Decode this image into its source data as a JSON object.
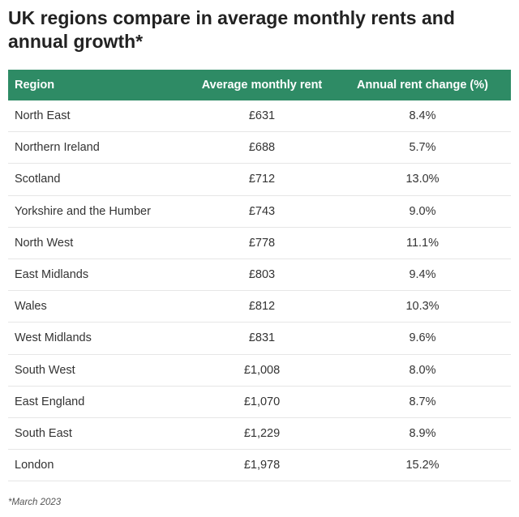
{
  "chart_data": {
    "type": "table",
    "title": "UK regions compare in average monthly rents and annual growth*",
    "columns": [
      "Region",
      "Average monthly rent",
      "Annual rent change (%)"
    ],
    "rows": [
      [
        "North East",
        "£631",
        "8.4%"
      ],
      [
        "Northern Ireland",
        "£688",
        "5.7%"
      ],
      [
        "Scotland",
        "£712",
        "13.0%"
      ],
      [
        "Yorkshire and the Humber",
        "£743",
        "9.0%"
      ],
      [
        "North West",
        "£778",
        "11.1%"
      ],
      [
        "East Midlands",
        "£803",
        "9.4%"
      ],
      [
        "Wales",
        "£812",
        "10.3%"
      ],
      [
        "West Midlands",
        "£831",
        "9.6%"
      ],
      [
        "South West",
        "£1,008",
        "8.0%"
      ],
      [
        "East England",
        "£1,070",
        "8.7%"
      ],
      [
        "South East",
        "£1,229",
        "8.9%"
      ],
      [
        "London",
        "£1,978",
        "15.2%"
      ]
    ],
    "footnote": "*March 2023"
  },
  "colors": {
    "header_bg": "#2e8b65",
    "header_text": "#ffffff",
    "row_border": "#e6e6e6"
  }
}
